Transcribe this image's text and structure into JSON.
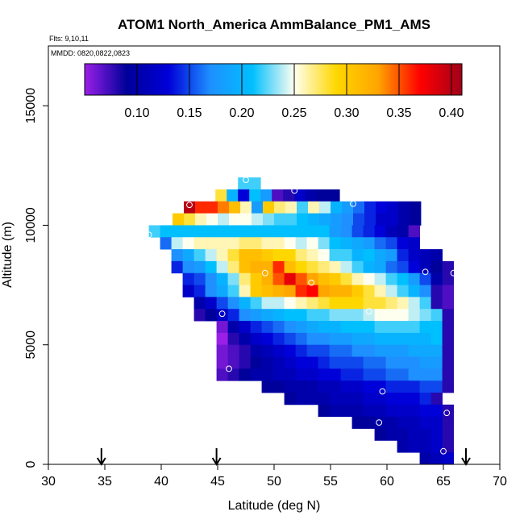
{
  "chart_data": {
    "type": "heatmap",
    "title": "ATOM1 North_America AmmBalance_PM1_AMS",
    "notes": [
      "Flts: 9,10,11",
      "MMDD: 0820,0822,0823"
    ],
    "xlabel": "Latitude (deg N)",
    "ylabel": "Altitude (m)",
    "xlim": [
      30,
      70
    ],
    "ylim": [
      0,
      17500
    ],
    "x_ticks": [
      "30",
      "35",
      "40",
      "45",
      "50",
      "55",
      "60",
      "65",
      "70"
    ],
    "y_ticks": [
      "0",
      "5000",
      "10000",
      "15000"
    ],
    "colorbar": {
      "range": [
        0.05,
        0.41
      ],
      "tick_values": [
        0.1,
        0.15,
        0.2,
        0.25,
        0.3,
        0.35,
        0.4
      ],
      "tick_labels": [
        "0.10",
        "0.15",
        "0.20",
        "0.25",
        "0.30",
        "0.35",
        "0.40"
      ],
      "colors": [
        "#9a1fe8",
        "#00009a",
        "#0000d8",
        "#1e90ff",
        "#00bfff",
        "#fffff0",
        "#ffd700",
        "#ffa500",
        "#ff0000",
        "#a0001a"
      ]
    },
    "grid": false,
    "arrow_latitudes": [
      34.7,
      44.9,
      67.0
    ],
    "cell_size": {
      "lat": 1.0,
      "alt": 500
    },
    "bands": [
      {
        "alt": 11750,
        "lat_start": 46.8,
        "values": [
          0.22,
          0.22
        ]
      },
      {
        "alt": 11250,
        "lat_start": 44.8,
        "values": [
          0.28,
          0.2,
          0.13,
          0.21,
          0.18,
          0.07,
          0.08,
          0.12,
          0.1,
          0.09,
          0.09
        ]
      },
      {
        "alt": 10750,
        "lat_start": 42.0,
        "values": [
          0.4,
          0.36,
          0.36,
          0.34,
          0.31,
          0.26,
          0.18,
          0.3,
          0.27,
          0.26,
          0.22,
          0.26,
          0.24,
          0.2,
          0.18,
          0.16,
          0.14,
          0.13,
          0.12,
          0.1,
          0.09
        ]
      },
      {
        "alt": 10250,
        "lat_start": 41.0,
        "values": [
          0.3,
          0.28,
          0.26,
          0.25,
          0.24,
          0.25,
          0.25,
          0.24,
          0.23,
          0.22,
          0.22,
          0.21,
          0.2,
          0.19,
          0.18,
          0.17,
          0.15,
          0.14,
          0.12,
          0.12,
          0.1,
          0.09
        ]
      },
      {
        "alt": 9750,
        "lat_start": 38.9,
        "values": [
          0.22,
          0.21,
          0.21,
          0.21,
          0.21,
          0.21,
          0.21,
          0.21,
          0.21,
          0.21,
          0.21,
          0.21,
          0.21,
          0.21,
          0.21,
          0.21,
          0.18,
          0.17,
          0.15,
          0.14,
          0.13,
          0.11,
          0.1,
          0.07
        ]
      },
      {
        "alt": 9250,
        "lat_start": 39.9,
        "values": [
          0.16,
          0.24,
          0.25,
          0.26,
          0.26,
          0.26,
          0.26,
          0.27,
          0.27,
          0.26,
          0.26,
          0.25,
          0.24,
          0.25,
          0.23,
          0.21,
          0.2,
          0.19,
          0.18,
          0.16,
          0.15,
          0.13,
          0.12
        ]
      },
      {
        "alt": 8750,
        "lat_start": 40.9,
        "values": [
          0.17,
          0.19,
          0.22,
          0.24,
          0.26,
          0.28,
          0.31,
          0.31,
          0.3,
          0.29,
          0.29,
          0.27,
          0.26,
          0.25,
          0.22,
          0.22,
          0.2,
          0.21,
          0.19,
          0.18,
          0.14,
          0.12,
          0.11,
          0.1
        ]
      },
      {
        "alt": 8250,
        "lat_start": 40.9,
        "values": [
          0.14,
          0.17,
          0.18,
          0.21,
          0.24,
          0.27,
          0.31,
          0.32,
          0.32,
          0.36,
          0.31,
          0.29,
          0.28,
          0.27,
          0.26,
          0.24,
          0.22,
          0.2,
          0.19,
          0.16,
          0.15,
          0.13,
          0.11,
          0.09,
          0.08
        ]
      },
      {
        "alt": 7750,
        "lat_start": 41.9,
        "values": [
          0.14,
          0.15,
          0.17,
          0.2,
          0.23,
          0.27,
          0.3,
          0.32,
          0.35,
          0.38,
          0.35,
          0.33,
          0.31,
          0.3,
          0.28,
          0.26,
          0.25,
          0.24,
          0.22,
          0.21,
          0.18,
          0.15,
          0.1,
          0.08
        ]
      },
      {
        "alt": 7250,
        "lat_start": 41.9,
        "values": [
          0.12,
          0.14,
          0.17,
          0.19,
          0.22,
          0.26,
          0.3,
          0.31,
          0.32,
          0.33,
          0.36,
          0.37,
          0.33,
          0.32,
          0.32,
          0.3,
          0.28,
          0.26,
          0.24,
          0.22,
          0.2,
          0.17,
          0.08,
          0.07
        ]
      },
      {
        "alt": 6750,
        "lat_start": 42.9,
        "values": [
          0.1,
          0.12,
          0.15,
          0.17,
          0.2,
          0.22,
          0.24,
          0.24,
          0.25,
          0.26,
          0.27,
          0.28,
          0.29,
          0.29,
          0.29,
          0.28,
          0.28,
          0.27,
          0.26,
          0.24,
          0.22,
          0.08,
          0.07
        ]
      },
      {
        "alt": 6250,
        "lat_start": 42.9,
        "values": [
          0.08,
          0.09,
          0.12,
          0.14,
          0.17,
          0.18,
          0.19,
          0.2,
          0.21,
          0.21,
          0.22,
          0.22,
          0.23,
          0.23,
          0.23,
          0.24,
          0.25,
          0.25,
          0.25,
          0.24,
          0.23,
          0.22,
          0.08
        ]
      },
      {
        "alt": 5750,
        "lat_start": 44.9,
        "values": [
          0.06,
          0.1,
          0.12,
          0.14,
          0.15,
          0.16,
          0.17,
          0.18,
          0.19,
          0.2,
          0.2,
          0.21,
          0.21,
          0.21,
          0.22,
          0.22,
          0.22,
          0.22,
          0.21,
          0.21,
          0.08
        ]
      },
      {
        "alt": 5250,
        "lat_start": 44.9,
        "values": [
          0.05,
          0.08,
          0.1,
          0.12,
          0.13,
          0.14,
          0.15,
          0.16,
          0.17,
          0.17,
          0.18,
          0.18,
          0.19,
          0.19,
          0.2,
          0.2,
          0.2,
          0.2,
          0.2,
          0.21,
          0.08
        ]
      },
      {
        "alt": 4750,
        "lat_start": 44.9,
        "values": [
          0.06,
          0.07,
          0.08,
          0.1,
          0.11,
          0.12,
          0.13,
          0.14,
          0.15,
          0.15,
          0.16,
          0.16,
          0.17,
          0.17,
          0.18,
          0.18,
          0.18,
          0.19,
          0.19,
          0.19,
          0.08
        ]
      },
      {
        "alt": 4250,
        "lat_start": 44.9,
        "values": [
          0.06,
          0.07,
          0.08,
          0.09,
          0.1,
          0.11,
          0.12,
          0.13,
          0.13,
          0.14,
          0.15,
          0.15,
          0.15,
          0.16,
          0.16,
          0.17,
          0.17,
          0.17,
          0.18,
          0.18,
          0.08
        ]
      },
      {
        "alt": 3750,
        "lat_start": 44.9,
        "values": [
          0.07,
          0.08,
          0.09,
          0.1,
          0.1,
          0.11,
          0.11,
          0.12,
          0.12,
          0.13,
          0.13,
          0.14,
          0.14,
          0.15,
          0.15,
          0.16,
          0.16,
          0.17,
          0.17,
          0.17,
          0.08
        ]
      },
      {
        "alt": 3250,
        "lat_start": 48.9,
        "values": [
          0.09,
          0.09,
          0.1,
          0.1,
          0.1,
          0.11,
          0.11,
          0.12,
          0.12,
          0.13,
          0.13,
          0.14,
          0.14,
          0.14,
          0.15,
          0.15,
          0.08
        ]
      },
      {
        "alt": 2750,
        "lat_start": 50.9,
        "values": [
          0.09,
          0.1,
          0.1,
          0.1,
          0.11,
          0.11,
          0.11,
          0.12,
          0.12,
          0.13,
          0.13,
          0.13,
          0.14,
          0.08
        ]
      },
      {
        "alt": 2250,
        "lat_start": 53.9,
        "values": [
          0.09,
          0.1,
          0.1,
          0.1,
          0.11,
          0.11,
          0.12,
          0.12,
          0.12,
          0.13,
          0.13,
          0.08
        ]
      },
      {
        "alt": 1750,
        "lat_start": 56.9,
        "values": [
          0.09,
          0.09,
          0.1,
          0.1,
          0.11,
          0.11,
          0.12,
          0.12,
          0.08
        ]
      },
      {
        "alt": 1250,
        "lat_start": 58.9,
        "values": [
          0.09,
          0.1,
          0.1,
          0.11,
          0.11,
          0.12,
          0.08
        ]
      },
      {
        "alt": 750,
        "lat_start": 60.9,
        "values": [
          0.1,
          0.11,
          0.11,
          0.12,
          0.08
        ]
      },
      {
        "alt": 250,
        "lat_start": 62.9,
        "values": [
          0.1,
          0.11,
          0.12
        ]
      }
    ],
    "markers": [
      {
        "lat": 42.5,
        "alt": 10850,
        "color": "#ffffff"
      },
      {
        "lat": 47.5,
        "alt": 11900,
        "color": "#ffffff"
      },
      {
        "lat": 51.8,
        "alt": 11450,
        "color": "#ffffff"
      },
      {
        "lat": 57.0,
        "alt": 10900,
        "color": "#ffffff"
      },
      {
        "lat": 38.9,
        "alt": 9600,
        "color": "#ffffff"
      },
      {
        "lat": 49.2,
        "alt": 8000,
        "color": "#ffffff"
      },
      {
        "lat": 53.3,
        "alt": 7600,
        "color": "#ffffff"
      },
      {
        "lat": 63.4,
        "alt": 8050,
        "color": "#ffffff"
      },
      {
        "lat": 65.9,
        "alt": 8000,
        "color": "#ffffff"
      },
      {
        "lat": 45.4,
        "alt": 6300,
        "color": "#ffffff"
      },
      {
        "lat": 58.4,
        "alt": 6400,
        "color": "#ffffff"
      },
      {
        "lat": 46.0,
        "alt": 4000,
        "color": "#ffffff"
      },
      {
        "lat": 59.6,
        "alt": 3050,
        "color": "#ffffff"
      },
      {
        "lat": 65.3,
        "alt": 2150,
        "color": "#ffffff"
      },
      {
        "lat": 59.3,
        "alt": 1750,
        "color": "#ffffff"
      },
      {
        "lat": 65.0,
        "alt": 550,
        "color": "#ffffff"
      }
    ]
  }
}
